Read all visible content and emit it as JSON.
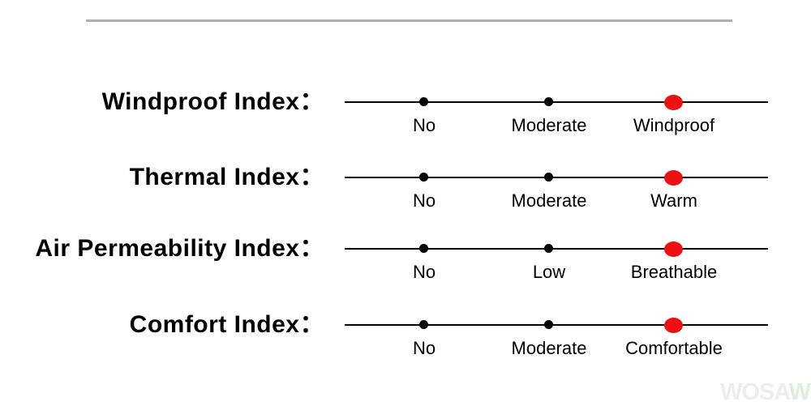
{
  "colors": {
    "background": "#ffffff",
    "divider": "#b3aeb1",
    "scale_line": "#000000",
    "inactive_dot": "#000000",
    "active_dot": "#ee1111",
    "text": "#000000"
  },
  "rows": [
    {
      "title": "Windproof Index：",
      "levels": [
        {
          "label": "No",
          "active": false
        },
        {
          "label": "Moderate",
          "active": false
        },
        {
          "label": "Windproof",
          "active": true
        }
      ]
    },
    {
      "title": "Thermal Index：",
      "levels": [
        {
          "label": "No",
          "active": false
        },
        {
          "label": "Moderate",
          "active": false
        },
        {
          "label": "Warm",
          "active": true
        }
      ]
    },
    {
      "title": "Air Permeability Index：",
      "levels": [
        {
          "label": "No",
          "active": false
        },
        {
          "label": "Low",
          "active": false
        },
        {
          "label": "Breathable",
          "active": true
        }
      ]
    },
    {
      "title": "Comfort Index：",
      "levels": [
        {
          "label": "No",
          "active": false
        },
        {
          "label": "Moderate",
          "active": false
        },
        {
          "label": "Comfortable",
          "active": true
        }
      ]
    }
  ],
  "watermark": {
    "text_left": "WOSA",
    "text_right": "WE"
  }
}
